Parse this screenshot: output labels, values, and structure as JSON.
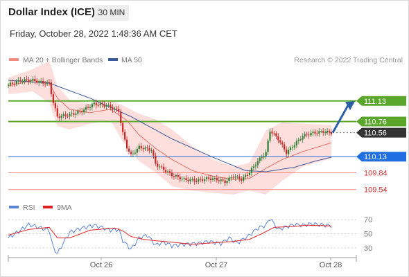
{
  "header": {
    "title": "Dollar Index (ICE)",
    "timeframe": "30 MIN",
    "datetime": "Friday, October 28, 2022 1:48:36 AM CET"
  },
  "legend": {
    "ma20": {
      "label": "MA 20 + Bollinger Bands",
      "color": "#f28b82"
    },
    "ma50": {
      "label": "MA 50",
      "color": "#3b5998"
    },
    "copyright": "Research © 2022 Trading Central"
  },
  "rsi_legend": {
    "rsi": {
      "label": "RSI",
      "color": "#5b84d6"
    },
    "ma": {
      "label": "9MA",
      "color": "#e02020"
    }
  },
  "colors": {
    "up": "#2e7d32",
    "down": "#c62828",
    "resistance": "#5aa62a",
    "pivot": "#1f6fe0",
    "support": "#f28b82",
    "last": "#333333"
  },
  "chart_data": [
    {
      "type": "candlestick",
      "x_labels": [
        "Oct 26",
        "Oct 27",
        "Oct 28"
      ],
      "ylim": [
        109.3,
        111.55
      ],
      "levels": [
        {
          "value": 111.13,
          "label": "111.13",
          "kind": "resistance"
        },
        {
          "value": 110.76,
          "label": "110.76",
          "kind": "resistance"
        },
        {
          "value": 110.56,
          "label": "110.56",
          "kind": "last"
        },
        {
          "value": 110.13,
          "label": "110.13",
          "kind": "pivot"
        },
        {
          "value": 109.84,
          "label": "109.84",
          "kind": "support"
        },
        {
          "value": 109.54,
          "label": "109.54",
          "kind": "support"
        }
      ],
      "price_anchors": [
        [
          0,
          111.42
        ],
        [
          6,
          111.5
        ],
        [
          12,
          111.5
        ],
        [
          18,
          111.45
        ],
        [
          20,
          111.45
        ],
        [
          22,
          111.1
        ],
        [
          24,
          110.85
        ],
        [
          30,
          110.88
        ],
        [
          36,
          110.95
        ],
        [
          42,
          111.08
        ],
        [
          48,
          111.05
        ],
        [
          54,
          110.95
        ],
        [
          56,
          110.55
        ],
        [
          58,
          110.3
        ],
        [
          60,
          110.15
        ],
        [
          64,
          110.3
        ],
        [
          70,
          110.25
        ],
        [
          72,
          110.0
        ],
        [
          76,
          109.9
        ],
        [
          80,
          109.8
        ],
        [
          86,
          109.72
        ],
        [
          92,
          109.7
        ],
        [
          98,
          109.74
        ],
        [
          102,
          109.72
        ],
        [
          106,
          109.68
        ],
        [
          110,
          109.78
        ],
        [
          114,
          109.72
        ],
        [
          118,
          109.85
        ],
        [
          122,
          110.05
        ],
        [
          126,
          110.2
        ],
        [
          128,
          110.6
        ],
        [
          132,
          110.45
        ],
        [
          136,
          110.2
        ],
        [
          140,
          110.35
        ],
        [
          144,
          110.5
        ],
        [
          148,
          110.55
        ],
        [
          154,
          110.58
        ],
        [
          158,
          110.56
        ]
      ],
      "ma20_anchors": [
        [
          0,
          111.4
        ],
        [
          12,
          111.5
        ],
        [
          20,
          111.45
        ],
        [
          24,
          111.18
        ],
        [
          30,
          110.98
        ],
        [
          40,
          110.92
        ],
        [
          50,
          110.98
        ],
        [
          58,
          110.78
        ],
        [
          64,
          110.52
        ],
        [
          72,
          110.28
        ],
        [
          80,
          110.08
        ],
        [
          90,
          109.88
        ],
        [
          100,
          109.78
        ],
        [
          110,
          109.72
        ],
        [
          118,
          109.74
        ],
        [
          126,
          109.92
        ],
        [
          134,
          110.08
        ],
        [
          144,
          110.22
        ],
        [
          158,
          110.38
        ]
      ],
      "band_upper": [
        [
          0,
          111.55
        ],
        [
          12,
          111.7
        ],
        [
          20,
          111.85
        ],
        [
          24,
          111.4
        ],
        [
          30,
          111.15
        ],
        [
          40,
          111.08
        ],
        [
          50,
          111.15
        ],
        [
          56,
          111.05
        ],
        [
          64,
          110.9
        ],
        [
          72,
          110.8
        ],
        [
          80,
          110.62
        ],
        [
          90,
          110.32
        ],
        [
          100,
          110.08
        ],
        [
          110,
          109.95
        ],
        [
          118,
          110.02
        ],
        [
          126,
          110.6
        ],
        [
          134,
          110.75
        ],
        [
          144,
          110.72
        ],
        [
          158,
          110.7
        ]
      ],
      "band_lower": [
        [
          0,
          111.25
        ],
        [
          12,
          111.3
        ],
        [
          20,
          111.1
        ],
        [
          24,
          110.68
        ],
        [
          30,
          110.62
        ],
        [
          40,
          110.72
        ],
        [
          50,
          110.78
        ],
        [
          56,
          110.4
        ],
        [
          64,
          110.05
        ],
        [
          72,
          109.85
        ],
        [
          80,
          109.6
        ],
        [
          90,
          109.52
        ],
        [
          100,
          109.48
        ],
        [
          110,
          109.45
        ],
        [
          118,
          109.52
        ],
        [
          126,
          109.45
        ],
        [
          134,
          109.7
        ],
        [
          144,
          109.95
        ],
        [
          158,
          110.1
        ]
      ],
      "ma50_anchors": [
        [
          0,
          111.5
        ],
        [
          20,
          111.45
        ],
        [
          40,
          111.18
        ],
        [
          60,
          110.85
        ],
        [
          80,
          110.45
        ],
        [
          100,
          110.12
        ],
        [
          116,
          109.88
        ],
        [
          126,
          109.86
        ],
        [
          140,
          109.94
        ],
        [
          150,
          110.05
        ],
        [
          158,
          110.12
        ]
      ]
    },
    {
      "type": "line",
      "name_rsi": "RSI",
      "name_ma": "9MA",
      "ticks": [
        70,
        50,
        30
      ],
      "ylim": [
        20,
        75
      ],
      "rsi_anchors": [
        [
          0,
          44
        ],
        [
          6,
          55
        ],
        [
          10,
          63
        ],
        [
          16,
          58
        ],
        [
          20,
          55
        ],
        [
          22,
          30
        ],
        [
          24,
          22
        ],
        [
          30,
          52
        ],
        [
          36,
          58
        ],
        [
          42,
          62
        ],
        [
          50,
          55
        ],
        [
          54,
          56
        ],
        [
          56,
          40
        ],
        [
          60,
          28
        ],
        [
          64,
          44
        ],
        [
          68,
          48
        ],
        [
          72,
          34
        ],
        [
          76,
          38
        ],
        [
          80,
          33
        ],
        [
          86,
          35
        ],
        [
          92,
          36
        ],
        [
          98,
          39
        ],
        [
          104,
          36
        ],
        [
          108,
          44
        ],
        [
          112,
          37
        ],
        [
          118,
          48
        ],
        [
          122,
          58
        ],
        [
          126,
          62
        ],
        [
          128,
          72
        ],
        [
          132,
          56
        ],
        [
          136,
          60
        ],
        [
          140,
          63
        ],
        [
          144,
          62
        ],
        [
          148,
          64
        ],
        [
          152,
          63
        ],
        [
          158,
          61
        ]
      ],
      "ma_anchors": [
        [
          0,
          48
        ],
        [
          10,
          56
        ],
        [
          20,
          59
        ],
        [
          24,
          44
        ],
        [
          30,
          44
        ],
        [
          40,
          55
        ],
        [
          52,
          58
        ],
        [
          56,
          54
        ],
        [
          60,
          46
        ],
        [
          66,
          42
        ],
        [
          72,
          40
        ],
        [
          80,
          38
        ],
        [
          90,
          35
        ],
        [
          100,
          37
        ],
        [
          110,
          39
        ],
        [
          118,
          42
        ],
        [
          124,
          50
        ],
        [
          130,
          59
        ],
        [
          138,
          60
        ],
        [
          146,
          62
        ],
        [
          158,
          61
        ]
      ]
    }
  ]
}
